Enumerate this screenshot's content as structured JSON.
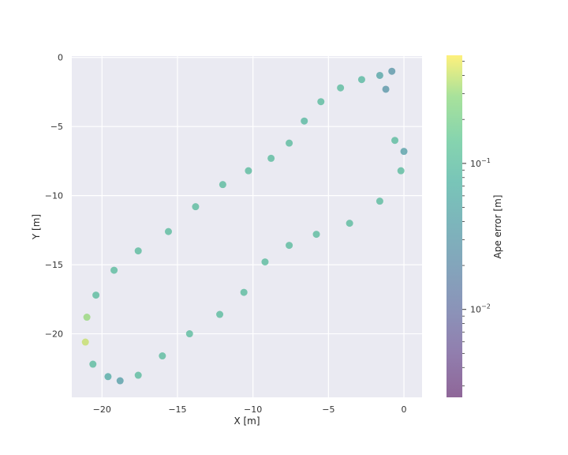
{
  "chart_data": {
    "type": "scatter",
    "title": "",
    "xlabel": "X [m]",
    "ylabel": "Y [m]",
    "xlim": [
      -22.0,
      1.2
    ],
    "ylim": [
      -24.6,
      0.1
    ],
    "x_ticks": [
      -20,
      -15,
      -10,
      -5,
      0
    ],
    "y_ticks": [
      0,
      -5,
      -10,
      -15,
      -20
    ],
    "x_tick_labels": [
      "−20",
      "−15",
      "−10",
      "−5",
      "0"
    ],
    "y_tick_labels": [
      "0",
      "−5",
      "−10",
      "−15",
      "−20"
    ],
    "grid": true,
    "background": "#eaeaf2",
    "colorbar": {
      "label": "Ape error [m]",
      "scale": "log",
      "range": [
        0.0025,
        0.55
      ],
      "major_ticks": [
        {
          "value": 0.01,
          "label": "10−2"
        },
        {
          "value": 0.1,
          "label": "10−1"
        }
      ],
      "minor_ticks": [
        0.003,
        0.004,
        0.005,
        0.006,
        0.007,
        0.008,
        0.009,
        0.02,
        0.03,
        0.04,
        0.05,
        0.06,
        0.07,
        0.08,
        0.09,
        0.2,
        0.3,
        0.4,
        0.5
      ],
      "colormap": "viridis",
      "point_alpha": 0.6
    },
    "series": [
      {
        "points": [
          [
            -0.8,
            -1.0,
            0.03
          ],
          [
            -1.6,
            -1.3,
            0.05
          ],
          [
            -2.8,
            -1.6,
            0.09
          ],
          [
            -4.2,
            -2.2,
            0.1
          ],
          [
            -5.5,
            -3.2,
            0.1
          ],
          [
            -6.6,
            -4.6,
            0.09
          ],
          [
            -7.6,
            -6.2,
            0.1
          ],
          [
            -8.8,
            -7.3,
            0.1
          ],
          [
            -10.3,
            -8.2,
            0.1
          ],
          [
            -12.0,
            -9.2,
            0.1
          ],
          [
            -13.8,
            -10.8,
            0.1
          ],
          [
            -15.6,
            -12.6,
            0.1
          ],
          [
            -17.6,
            -14.0,
            0.1
          ],
          [
            -19.2,
            -15.4,
            0.1
          ],
          [
            -20.4,
            -17.2,
            0.1
          ],
          [
            -21.0,
            -18.8,
            0.3
          ],
          [
            -21.1,
            -20.6,
            0.4
          ],
          [
            -20.6,
            -22.2,
            0.1
          ],
          [
            -19.6,
            -23.1,
            0.06
          ],
          [
            -18.8,
            -23.4,
            0.04
          ],
          [
            -17.6,
            -23.0,
            0.1
          ],
          [
            -16.0,
            -21.6,
            0.1
          ],
          [
            -14.2,
            -20.0,
            0.1
          ],
          [
            -12.2,
            -18.6,
            0.1
          ],
          [
            -10.6,
            -17.0,
            0.1
          ],
          [
            -9.2,
            -14.8,
            0.1
          ],
          [
            -7.6,
            -13.6,
            0.1
          ],
          [
            -5.8,
            -12.8,
            0.1
          ],
          [
            -3.6,
            -12.0,
            0.1
          ],
          [
            -1.6,
            -10.4,
            0.1
          ],
          [
            -0.2,
            -8.2,
            0.1
          ],
          [
            0.0,
            -6.8,
            0.04
          ],
          [
            -0.6,
            -6.0,
            0.1
          ],
          [
            -1.2,
            -2.3,
            0.03
          ]
        ]
      }
    ]
  }
}
